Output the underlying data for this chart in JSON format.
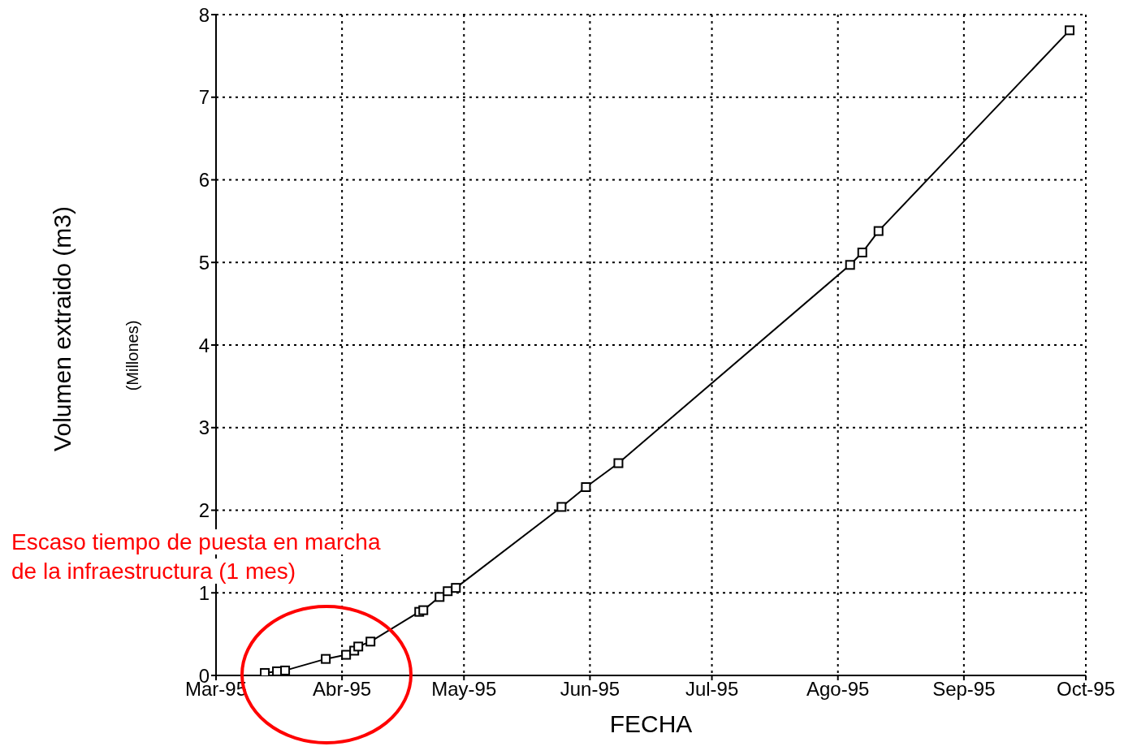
{
  "chart_data": {
    "type": "line",
    "xlabel": "FECHA",
    "ylabel": "Volumen extraido (m3)",
    "annotations": [
      "(Millones)",
      "Escaso tiempo de puesta en marcha de la infraestructura (1 mes)"
    ],
    "x": [
      "1995-03-13",
      "1995-03-16",
      "1995-03-18",
      "1995-03-28",
      "1995-04-02",
      "1995-04-04",
      "1995-04-05",
      "1995-04-08",
      "1995-04-20",
      "1995-04-21",
      "1995-04-25",
      "1995-04-27",
      "1995-04-29",
      "1995-05-25",
      "1995-05-31",
      "1995-06-08",
      "1995-08-04",
      "1995-08-07",
      "1995-08-11",
      "1995-09-27"
    ],
    "series": [
      {
        "color": "#000000",
        "values": [
          0.03,
          0.05,
          0.06,
          0.2,
          0.25,
          0.3,
          0.35,
          0.41,
          0.77,
          0.79,
          0.95,
          1.02,
          1.06,
          2.04,
          2.28,
          2.57,
          4.97,
          5.12,
          5.38,
          7.81
        ]
      }
    ],
    "xlim": [
      "1995-03-01",
      "1995-10-01"
    ],
    "xticks": [
      {
        "value": "1995-03-01",
        "label": "Mar-95"
      },
      {
        "value": "1995-04-01",
        "label": "Abr-95"
      },
      {
        "value": "1995-05-01",
        "label": "May-95"
      },
      {
        "value": "1995-06-01",
        "label": "Jun-95"
      },
      {
        "value": "1995-07-01",
        "label": "Jul-95"
      },
      {
        "value": "1995-08-01",
        "label": "Ago-95"
      },
      {
        "value": "1995-09-01",
        "label": "Sep-95"
      },
      {
        "value": "1995-10-01",
        "label": "Oct-95"
      }
    ],
    "ylim": [
      0,
      8
    ],
    "yticks": [
      0,
      1,
      2,
      3,
      4,
      5,
      6,
      7,
      8
    ],
    "grid": true,
    "legend": false,
    "marker": "square",
    "line_style": "solid"
  }
}
